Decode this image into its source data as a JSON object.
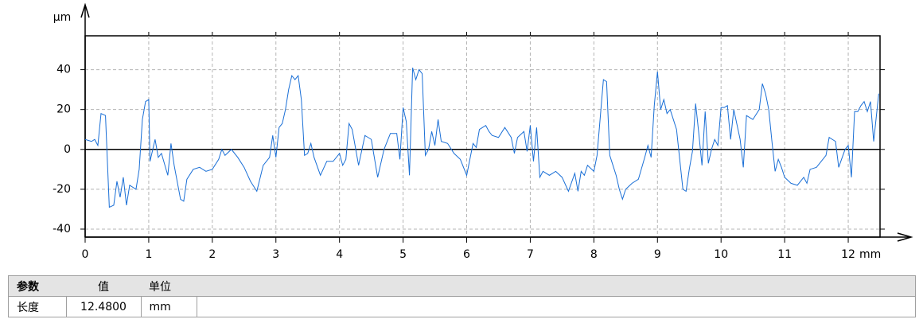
{
  "chart_data": {
    "type": "line",
    "y_unit": "µm",
    "x_unit": "mm",
    "x": [
      0,
      0.1,
      0.15,
      0.2,
      0.25,
      0.32,
      0.38,
      0.45,
      0.5,
      0.55,
      0.6,
      0.65,
      0.7,
      0.8,
      0.85,
      0.9,
      0.95,
      1.0,
      1.02,
      1.1,
      1.15,
      1.2,
      1.3,
      1.35,
      1.4,
      1.5,
      1.55,
      1.6,
      1.7,
      1.8,
      1.9,
      2.0,
      2.1,
      2.15,
      2.2,
      2.3,
      2.4,
      2.5,
      2.6,
      2.7,
      2.8,
      2.9,
      2.95,
      3.0,
      3.05,
      3.1,
      3.15,
      3.2,
      3.25,
      3.3,
      3.35,
      3.4,
      3.45,
      3.5,
      3.55,
      3.6,
      3.7,
      3.8,
      3.9,
      4.0,
      4.05,
      4.1,
      4.15,
      4.2,
      4.3,
      4.4,
      4.5,
      4.6,
      4.7,
      4.8,
      4.9,
      4.95,
      5.0,
      5.05,
      5.1,
      5.15,
      5.2,
      5.25,
      5.3,
      5.35,
      5.4,
      5.45,
      5.5,
      5.55,
      5.6,
      5.7,
      5.8,
      5.9,
      6.0,
      6.1,
      6.15,
      6.2,
      6.3,
      6.35,
      6.4,
      6.5,
      6.6,
      6.7,
      6.75,
      6.8,
      6.9,
      6.95,
      7.0,
      7.05,
      7.1,
      7.15,
      7.2,
      7.3,
      7.4,
      7.5,
      7.6,
      7.7,
      7.75,
      7.8,
      7.85,
      7.9,
      8.0,
      8.05,
      8.15,
      8.2,
      8.25,
      8.3,
      8.35,
      8.4,
      8.45,
      8.5,
      8.6,
      8.7,
      8.8,
      8.85,
      8.9,
      8.95,
      9.0,
      9.05,
      9.1,
      9.15,
      9.2,
      9.3,
      9.35,
      9.4,
      9.45,
      9.5,
      9.55,
      9.6,
      9.65,
      9.7,
      9.75,
      9.8,
      9.85,
      9.9,
      9.95,
      10.0,
      10.05,
      10.1,
      10.15,
      10.2,
      10.3,
      10.35,
      10.4,
      10.5,
      10.6,
      10.65,
      10.7,
      10.75,
      10.8,
      10.85,
      10.9,
      10.95,
      11.0,
      11.1,
      11.2,
      11.3,
      11.35,
      11.4,
      11.5,
      11.6,
      11.65,
      11.7,
      11.8,
      11.85,
      11.95,
      12.0,
      12.05,
      12.1,
      12.15,
      12.2,
      12.25,
      12.3,
      12.35,
      12.4,
      12.45,
      12.48
    ],
    "values": [
      5,
      4,
      5,
      2,
      18,
      17,
      -29,
      -28,
      -16,
      -24,
      -14,
      -28,
      -18,
      -20,
      -10,
      15,
      24,
      25,
      -6,
      5,
      -4,
      -2,
      -13,
      3,
      -8,
      -25,
      -26,
      -15,
      -10,
      -9,
      -11,
      -10,
      -5,
      0,
      -3,
      0,
      -4,
      -9,
      -16,
      -21,
      -8,
      -4,
      7,
      -4,
      11,
      13,
      20,
      30,
      37,
      35,
      37,
      25,
      -3,
      -2,
      3,
      -4,
      -13,
      -6,
      -6,
      -2,
      -8,
      -5,
      13,
      10,
      -8,
      7,
      5,
      -14,
      0,
      8,
      8,
      -5,
      21,
      14,
      -13,
      41,
      35,
      40,
      38,
      -3,
      0,
      9,
      2,
      15,
      4,
      3,
      -2,
      -5,
      -13,
      3,
      1,
      10,
      12,
      9,
      7,
      6,
      11,
      6,
      -2,
      6,
      9,
      -1,
      12,
      -6,
      11,
      -14,
      -11,
      -13,
      -11,
      -14,
      -21,
      -12,
      -21,
      -11,
      -13,
      -8,
      -11,
      -3,
      35,
      34,
      -3,
      -8,
      -13,
      -20,
      -25,
      -20,
      -17,
      -15,
      -4,
      2,
      -4,
      22,
      39,
      20,
      25,
      18,
      20,
      10,
      -5,
      -20,
      -21,
      -10,
      -1,
      23,
      8,
      -8,
      19,
      -7,
      0,
      5,
      2,
      21,
      21,
      22,
      5,
      20,
      5,
      -9,
      17,
      15,
      20,
      33,
      28,
      20,
      4,
      -11,
      -5,
      -9,
      -14,
      -17,
      -18,
      -14,
      -17,
      -10,
      -9,
      -5,
      -3,
      6,
      4,
      -9,
      0,
      2,
      -14,
      19,
      19,
      22,
      24,
      19,
      24,
      4,
      19,
      28
    ],
    "color": "#1a6fd6",
    "xlim": [
      0,
      12.5
    ],
    "xticks": [
      0,
      1,
      2,
      3,
      4,
      5,
      6,
      7,
      8,
      9,
      10,
      11,
      12
    ],
    "ylim": [
      -44,
      57
    ],
    "yticks": [
      -40,
      -20,
      0,
      20,
      40
    ],
    "grid": true
  },
  "table": {
    "headers": [
      "参数",
      "值",
      "单位"
    ],
    "rows": [
      [
        "长度",
        "12.4800",
        "mm"
      ]
    ]
  }
}
